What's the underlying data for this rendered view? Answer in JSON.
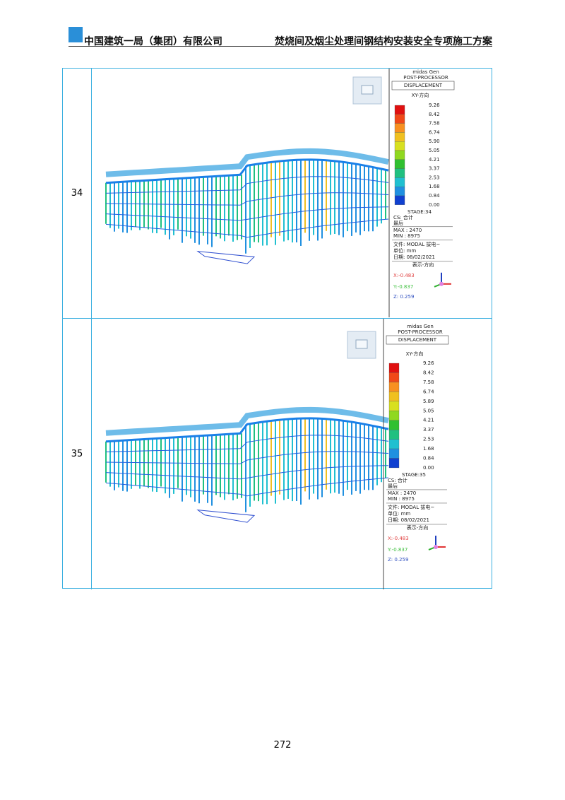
{
  "header": {
    "left": "中国建筑一局（集团）有限公司",
    "right": "焚烧间及烟尘处理间钢结构安装安全专项施工方案"
  },
  "table": {
    "rows": [
      {
        "number": "34",
        "panel": {
          "app": "midas Gen",
          "processor": "POST-PROCESSOR",
          "result": "DISPLACEMENT",
          "component": "XY-方向",
          "legend": [
            "9.26",
            "8.42",
            "7.58",
            "6.74",
            "5.90",
            "5.05",
            "4.21",
            "3.37",
            "2.53",
            "1.68",
            "0.84",
            "0.00"
          ],
          "stage": "STAGE:34",
          "cs": "CS: 合计",
          "step": "最后",
          "max": "MAX : 2470",
          "min": "MIN : 8975",
          "file": "文件: MODAL 拔电~",
          "unit": "单位: mm",
          "date": "日期: 08/02/2021",
          "view": "表示-方向",
          "x": "X:-0.483",
          "y": "Y:-0.837",
          "z": "Z: 0.259"
        }
      },
      {
        "number": "35",
        "panel": {
          "app": "midas Gen",
          "processor": "POST-PROCESSOR",
          "result": "DISPLACEMENT",
          "component": "XY-方向",
          "legend": [
            "9.26",
            "8.42",
            "7.58",
            "6.74",
            "5.89",
            "5.05",
            "4.21",
            "3.37",
            "2.53",
            "1.68",
            "0.84",
            "0.00"
          ],
          "stage": "STAGE:35",
          "cs": "CS: 合计",
          "step": "最后",
          "max": "MAX : 2470",
          "min": "MIN : 8975",
          "file": "文件: MODAL 拔电~",
          "unit": "单位: mm",
          "date": "日期: 08/02/2021",
          "view": "表示-方向",
          "x": "X:-0.483",
          "y": "Y:-0.837",
          "z": "Z: 0.259"
        }
      }
    ]
  },
  "page_number": "272"
}
